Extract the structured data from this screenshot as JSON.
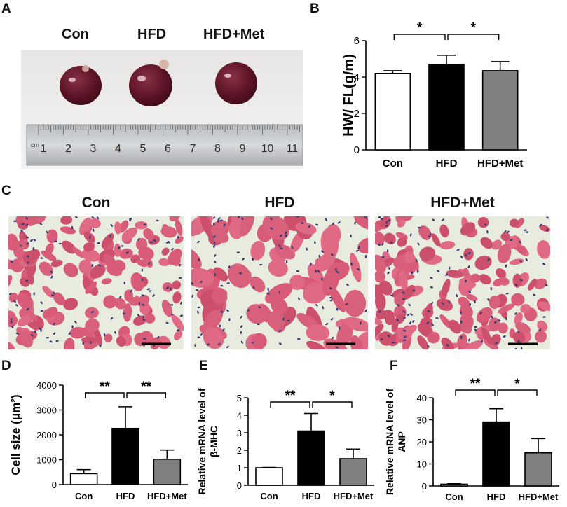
{
  "panels": {
    "A": {
      "letter": "A",
      "groups": [
        "Con",
        "HFD",
        "HFD+Met"
      ],
      "ruler_numbers": [
        "1",
        "2",
        "3",
        "4",
        "5",
        "6",
        "7",
        "8",
        "9",
        "10",
        "11"
      ],
      "ruler_unit": "cm"
    },
    "C": {
      "letter": "C",
      "groups": [
        "Con",
        "HFD",
        "HFD+Met"
      ]
    }
  },
  "colors": {
    "con": "#ffffff",
    "hfd": "#000000",
    "hfd_met": "#808080",
    "heart": "#6b1a2a",
    "stain_pink": "#d8607a",
    "stain_bg": "#e8ecdf",
    "nuclei": "#3a3a78"
  },
  "chart_data": [
    {
      "id": "B",
      "letter": "B",
      "type": "bar",
      "categories": [
        "Con",
        "HFD",
        "HFD+Met"
      ],
      "values": [
        4.2,
        4.7,
        4.35
      ],
      "errors": [
        0.15,
        0.5,
        0.5
      ],
      "ylabel": "HW/ FL(g/m)",
      "ylim": [
        0,
        6
      ],
      "yticks": [
        "0",
        "2",
        "4",
        "6"
      ],
      "yticks_values": [
        0,
        2,
        4,
        6
      ],
      "significance": [
        {
          "from": 0,
          "to": 1,
          "label": "*"
        },
        {
          "from": 1,
          "to": 2,
          "label": "*"
        }
      ]
    },
    {
      "id": "D",
      "letter": "D",
      "type": "bar",
      "categories": [
        "Con",
        "HFD",
        "HFD+Met"
      ],
      "values": [
        440,
        2260,
        1020
      ],
      "errors": [
        160,
        870,
        370
      ],
      "ylabel": "Cell size (μm²)",
      "ylim": [
        0,
        4000
      ],
      "yticks": [
        "0",
        "1000",
        "2000",
        "3000",
        "4000"
      ],
      "yticks_values": [
        0,
        1000,
        2000,
        3000,
        4000
      ],
      "significance": [
        {
          "from": 0,
          "to": 1,
          "label": "**"
        },
        {
          "from": 1,
          "to": 2,
          "label": "**"
        }
      ]
    },
    {
      "id": "E",
      "letter": "E",
      "type": "bar",
      "categories": [
        "Con",
        "HFD",
        "HFD+Met"
      ],
      "values": [
        1.0,
        3.1,
        1.52
      ],
      "errors": [
        0.02,
        1.0,
        0.55
      ],
      "ylabel_lines": [
        "Relative mRNA level of",
        "β-MHC"
      ],
      "ylim": [
        0,
        5
      ],
      "yticks": [
        "0",
        "1",
        "2",
        "3",
        "4",
        "5"
      ],
      "yticks_values": [
        0,
        1,
        2,
        3,
        4,
        5
      ],
      "significance": [
        {
          "from": 0,
          "to": 1,
          "label": "**"
        },
        {
          "from": 1,
          "to": 2,
          "label": "*"
        }
      ]
    },
    {
      "id": "F",
      "letter": "F",
      "type": "bar",
      "categories": [
        "Con",
        "HFD",
        "HFD+Met"
      ],
      "values": [
        0.8,
        29.0,
        15.0
      ],
      "errors": [
        0.2,
        6.0,
        6.5
      ],
      "ylabel_lines": [
        "Relative mRNA level of",
        "ANP"
      ],
      "ylim": [
        0,
        40
      ],
      "yticks": [
        "0",
        "10",
        "20",
        "30",
        "40"
      ],
      "yticks_values": [
        0,
        10,
        20,
        30,
        40
      ],
      "significance": [
        {
          "from": 0,
          "to": 1,
          "label": "**"
        },
        {
          "from": 1,
          "to": 2,
          "label": "*"
        }
      ]
    }
  ]
}
